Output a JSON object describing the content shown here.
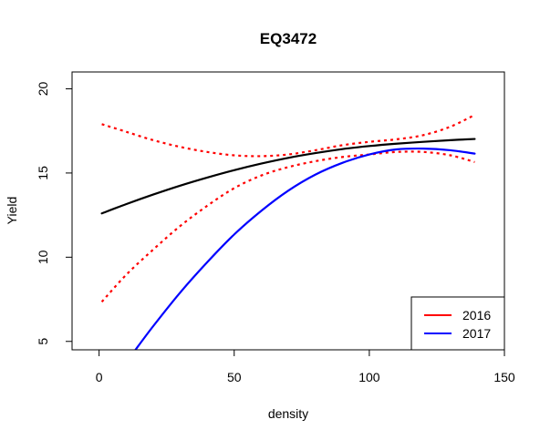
{
  "chart_data": {
    "type": "line",
    "title": "EQ3472",
    "xlabel": "density",
    "ylabel": "Yield",
    "xlim": [
      -10,
      150
    ],
    "ylim": [
      4.5,
      21
    ],
    "x_ticks": [
      0,
      50,
      100,
      150
    ],
    "x_tick_labels": [
      "0",
      "50",
      "100",
      "150"
    ],
    "y_ticks": [
      5,
      10,
      15,
      20
    ],
    "y_tick_labels": [
      "5",
      "10",
      "15",
      "20"
    ],
    "grid": false,
    "legend_position": "bottom-right",
    "legend": [
      {
        "label": "2016",
        "color": "#ff0000"
      },
      {
        "label": "2017",
        "color": "#0000ff"
      }
    ],
    "series": [
      {
        "color": "#000000",
        "style": "solid",
        "x": [
          1,
          10,
          20,
          30,
          40,
          50,
          60,
          70,
          80,
          90,
          100,
          110,
          120,
          130,
          139
        ],
        "y": [
          12.6,
          13.15,
          13.72,
          14.25,
          14.73,
          15.17,
          15.56,
          15.9,
          16.18,
          16.42,
          16.6,
          16.74,
          16.85,
          16.95,
          17.02
        ]
      },
      {
        "name": "2016",
        "color": "#ff0000",
        "style": "dotted",
        "x": [
          1,
          10,
          20,
          30,
          40,
          50,
          60,
          70,
          80,
          90,
          100,
          110,
          120,
          130,
          139
        ],
        "y": [
          17.9,
          17.45,
          16.95,
          16.55,
          16.25,
          16.05,
          16.0,
          16.1,
          16.35,
          16.65,
          16.85,
          17.0,
          17.25,
          17.75,
          18.45
        ]
      },
      {
        "name": "2016",
        "color": "#ff0000",
        "style": "dotted",
        "x": [
          1,
          10,
          20,
          30,
          40,
          50,
          60,
          70,
          80,
          90,
          100,
          110,
          120,
          130,
          139
        ],
        "y": [
          7.35,
          8.95,
          10.45,
          11.85,
          13.05,
          14.1,
          14.85,
          15.35,
          15.7,
          15.95,
          16.1,
          16.25,
          16.25,
          16.05,
          15.65
        ]
      },
      {
        "name": "2017",
        "color": "#0000ff",
        "style": "solid",
        "x": [
          13,
          20,
          30,
          40,
          50,
          60,
          70,
          80,
          90,
          100,
          110,
          120,
          130,
          139
        ],
        "y": [
          4.4,
          5.9,
          7.9,
          9.7,
          11.35,
          12.75,
          13.95,
          14.9,
          15.6,
          16.1,
          16.4,
          16.45,
          16.35,
          16.15
        ]
      }
    ]
  }
}
